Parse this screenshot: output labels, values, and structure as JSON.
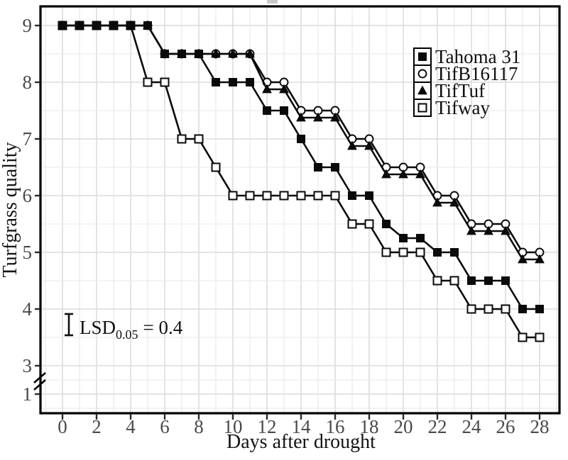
{
  "chart_data": {
    "type": "line",
    "title": "",
    "xlabel": "Days after drought",
    "ylabel": "Turfgrass quality",
    "x_ticks": [
      0,
      2,
      4,
      6,
      8,
      10,
      12,
      14,
      16,
      18,
      20,
      22,
      24,
      26,
      28
    ],
    "y_ticks": [
      9,
      8,
      7,
      6,
      5,
      4,
      3,
      1
    ],
    "y_axis_break_between": [
      1,
      3
    ],
    "xlim": [
      0,
      28
    ],
    "ylim": [
      1,
      9
    ],
    "grid": {
      "shown": true,
      "major_x_every": 2,
      "minor_x_every": 1,
      "major_y_every": 1,
      "minor_y_every": 0.5
    },
    "legend_position": "top-right",
    "days": [
      0,
      1,
      2,
      3,
      4,
      5,
      6,
      7,
      8,
      9,
      10,
      11,
      12,
      13,
      14,
      15,
      16,
      17,
      18,
      19,
      20,
      21,
      22,
      23,
      24,
      25,
      26,
      27,
      28
    ],
    "series": [
      {
        "name": "Tahoma 31",
        "marker": "filled-square",
        "values": [
          9,
          9,
          9,
          9,
          9,
          9,
          8.5,
          8.5,
          8.5,
          8,
          8,
          8,
          7.5,
          7.5,
          7,
          6.5,
          6.5,
          6,
          6,
          5.5,
          5.25,
          5.25,
          5,
          5,
          4.5,
          4.5,
          4.5,
          4,
          4
        ]
      },
      {
        "name": "TifB16117",
        "marker": "open-circle",
        "values": [
          9,
          9,
          9,
          9,
          9,
          9,
          8.5,
          8.5,
          8.5,
          8.5,
          8.5,
          8.5,
          8,
          8,
          7.5,
          7.5,
          7.5,
          7,
          7,
          6.5,
          6.5,
          6.5,
          6,
          6,
          5.5,
          5.5,
          5.5,
          5,
          5
        ]
      },
      {
        "name": "TifTuf",
        "marker": "filled-triangle",
        "values": [
          9,
          9,
          9,
          9,
          9,
          9,
          8.5,
          8.5,
          8.5,
          8.5,
          8.5,
          8.5,
          8,
          8,
          7.5,
          7.5,
          7.5,
          7,
          7,
          6.5,
          6.5,
          6.5,
          6,
          6,
          5.5,
          5.5,
          5.5,
          5,
          5
        ]
      },
      {
        "name": "Tifway",
        "marker": "open-square",
        "values": [
          9,
          9,
          9,
          9,
          9,
          8,
          8,
          7,
          7,
          6.5,
          6,
          6,
          6,
          6,
          6,
          6,
          6,
          5.5,
          5.5,
          5,
          5,
          5,
          4.5,
          4.5,
          4,
          4,
          4,
          3.5,
          3.5
        ]
      }
    ],
    "annotation": {
      "label": "LSD",
      "subscript": "0.05",
      "equals_value": "= 0.4",
      "lsd_value": 0.4
    }
  },
  "colors": {
    "line": "#0a0a0a",
    "open_marker_fill": "#ffffff",
    "border": "#000000",
    "grid_major": "#dcdcdc",
    "grid_minor": "#ececec",
    "tick_label": "#4a4a4a",
    "text": "#141414",
    "background": "#ffffff"
  }
}
